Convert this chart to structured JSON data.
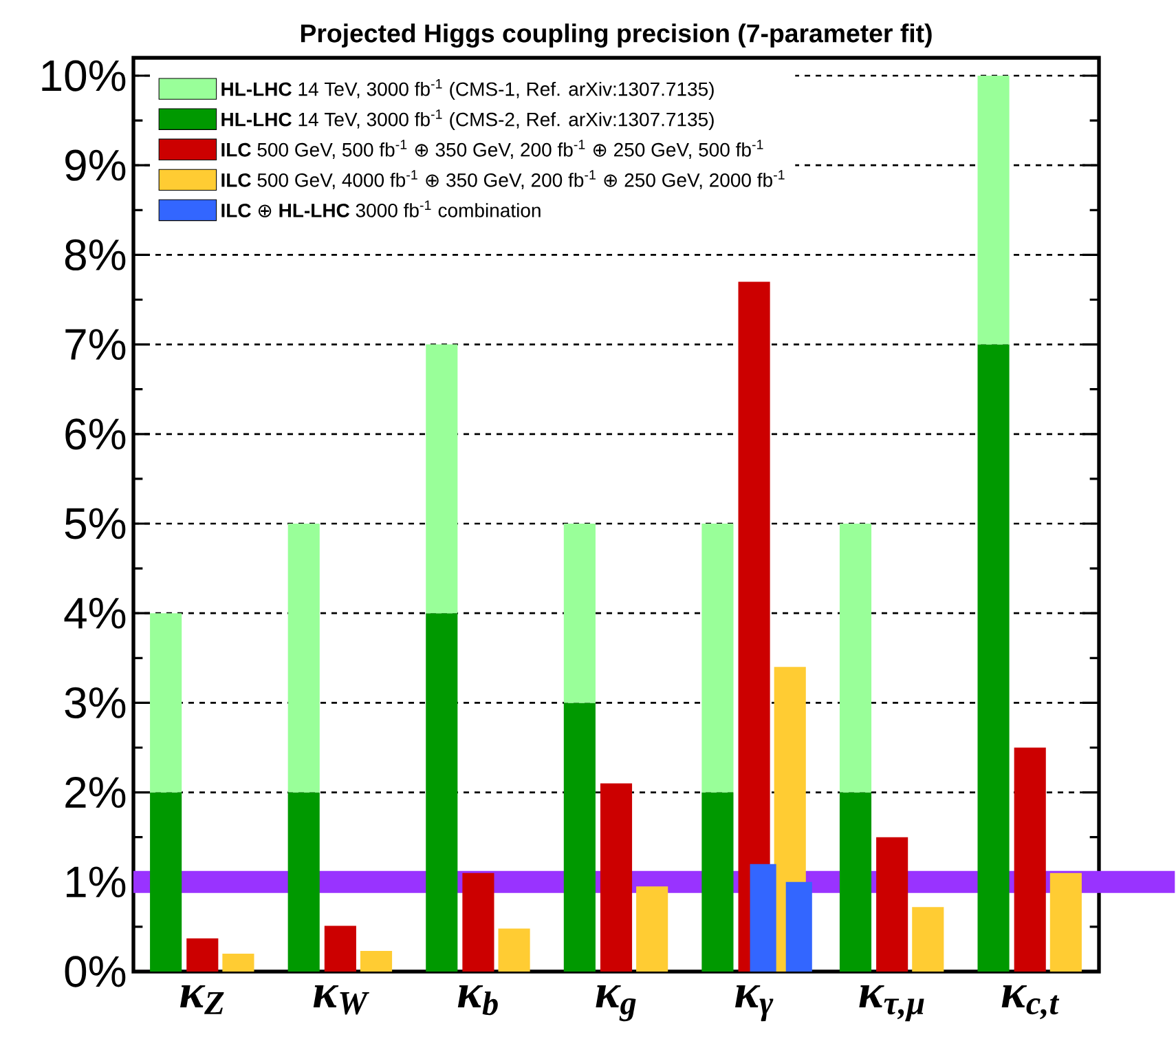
{
  "chart_data": {
    "type": "bar",
    "title": "Projected Higgs coupling precision (7-parameter fit)",
    "categories": [
      "κ$_{Z}$",
      "κ$_{W}$",
      "κ$_{b}$",
      "κ$_{g}$",
      "κ$_{γ}$",
      "κ$_{τ,μ}$",
      "κ$_{c,t}$"
    ],
    "series": [
      {
        "name": "**HL-LHC** 14 TeV, 3000 fb$^{-1}$ (CMS-1, Ref. arXiv:1307.7135)",
        "color": "#99ff99",
        "base": [
          2,
          2,
          4,
          3,
          2,
          2,
          7
        ],
        "values": [
          2,
          3,
          3,
          2,
          3,
          3,
          3
        ]
      },
      {
        "name": "**HL-LHC** 14 TeV, 3000 fb$^{-1}$ (CMS-2, Ref. arXiv:1307.7135)",
        "color": "#009900",
        "values": [
          2,
          2,
          4,
          3,
          2,
          2,
          7
        ]
      },
      {
        "name": "**ILC** 500 GeV,   500 fb$^{-1}$ ⊕ 350 GeV, 200 fb$^{-1}$ ⊕ 250 GeV,   500 fb$^{-1}$",
        "color": "#cc0000",
        "values": [
          0.37,
          0.51,
          1.1,
          2.1,
          7.7,
          1.5,
          2.5
        ]
      },
      {
        "name": "**ILC** 500 GeV, 4000 fb$^{-1}$ ⊕ 350 GeV, 200 fb$^{-1}$ ⊕ 250 GeV, 2000 fb$^{-1}$",
        "color": "#ffcc33",
        "values": [
          0.2,
          0.23,
          0.48,
          0.95,
          3.4,
          0.72,
          1.1
        ]
      },
      {
        "name": "**ILC** ⊕ **HL-LHC** 3000 fb$^{-1}$ combination",
        "color": "#3366ff",
        "values": [
          null,
          null,
          null,
          null,
          1.2,
          null,
          null
        ]
      },
      {
        "color": "#3366ff",
        "values": [
          null,
          null,
          null,
          null,
          1.0,
          null,
          null
        ]
      }
    ],
    "ylim": [
      0,
      10.2
    ],
    "yticks": [
      {
        "value": 0,
        "label": "0%"
      },
      {
        "value": 1,
        "label": "1%"
      },
      {
        "value": 2,
        "label": "2%"
      },
      {
        "value": 3,
        "label": "3%"
      },
      {
        "value": 4,
        "label": "4%"
      },
      {
        "value": 5,
        "label": "5%"
      },
      {
        "value": 6,
        "label": "6%"
      },
      {
        "value": 7,
        "label": "7%"
      },
      {
        "value": 8,
        "label": "8%"
      },
      {
        "value": 9,
        "label": "9%"
      },
      {
        "value": 10,
        "label": "10%"
      }
    ],
    "grid": "y",
    "legend": "top left",
    "ref_lines": [
      {
        "axis": "y",
        "value": 1,
        "color": "#9933ff"
      }
    ]
  }
}
